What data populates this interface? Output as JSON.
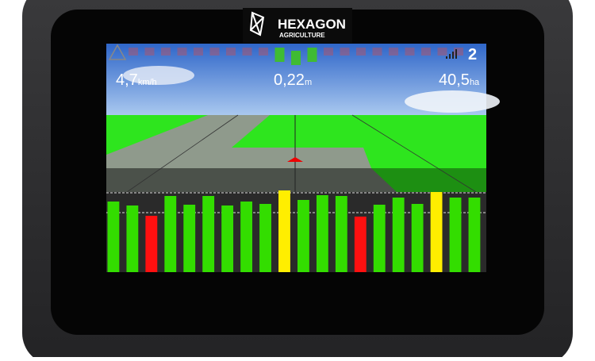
{
  "header": {
    "brand": "HEXAGON",
    "subbrand": "AGRICULTURE"
  },
  "status": {
    "speed": "4,7",
    "speed_unit": "km/h",
    "offset": "0,22",
    "offset_unit": "m",
    "area": "40,5",
    "area_unit": "ha",
    "satellites": "2"
  },
  "sections": {
    "values": [
      89,
      84,
      71,
      96,
      85,
      96,
      84,
      89,
      86,
      103,
      91,
      97,
      96,
      70,
      85,
      94,
      86,
      101,
      94,
      94
    ],
    "colors": [
      "#33dd00",
      "#33dd00",
      "#ff1010",
      "#33dd00",
      "#33dd00",
      "#33dd00",
      "#33dd00",
      "#33dd00",
      "#33dd00",
      "#ffee00",
      "#33dd00",
      "#33dd00",
      "#33dd00",
      "#ff1010",
      "#33dd00",
      "#33dd00",
      "#33dd00",
      "#ffee00",
      "#33dd00",
      "#33dd00"
    ]
  }
}
